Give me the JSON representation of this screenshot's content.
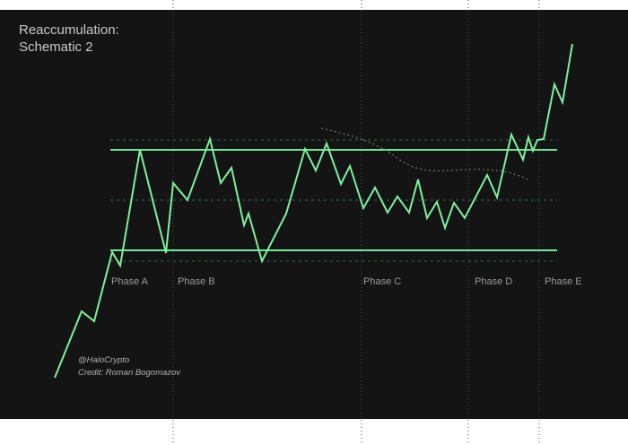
{
  "title": {
    "line1": "Reaccumulation:",
    "line2": "Schematic 2"
  },
  "phases": [
    "Phase A",
    "Phase B",
    "Phase C",
    "Phase D",
    "Phase E"
  ],
  "credit": {
    "handle": "@HaloCrypto",
    "author": "Credit: Roman Bogomazov"
  },
  "colors": {
    "background": "#141414",
    "price_line": "#7ef0a0",
    "range_line": "#6ee896",
    "dotted_guides": "#2e6e48",
    "phase_dividers": "#355848",
    "dashed_curve": "#8a8a8a"
  }
}
